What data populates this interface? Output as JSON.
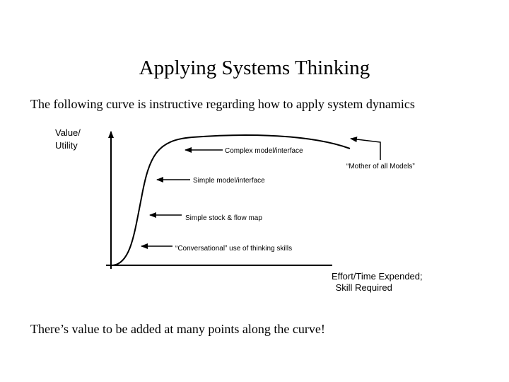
{
  "header": {
    "title": "Applying Systems Thinking"
  },
  "intro": "The following curve is instructive regarding how to apply system dynamics",
  "diagram": {
    "y_axis_label": [
      "Value/",
      "Utility"
    ],
    "x_axis_label": [
      "Effort/Time Expended;",
      " Skill Required"
    ],
    "annotations": [
      "Complex model/interface",
      "“Mother of all Models”",
      "Simple model/interface",
      "Simple stock & flow map",
      "“Conversational” use of thinking skills"
    ]
  },
  "footer": "There’s value to be added at many points along the curve!"
}
